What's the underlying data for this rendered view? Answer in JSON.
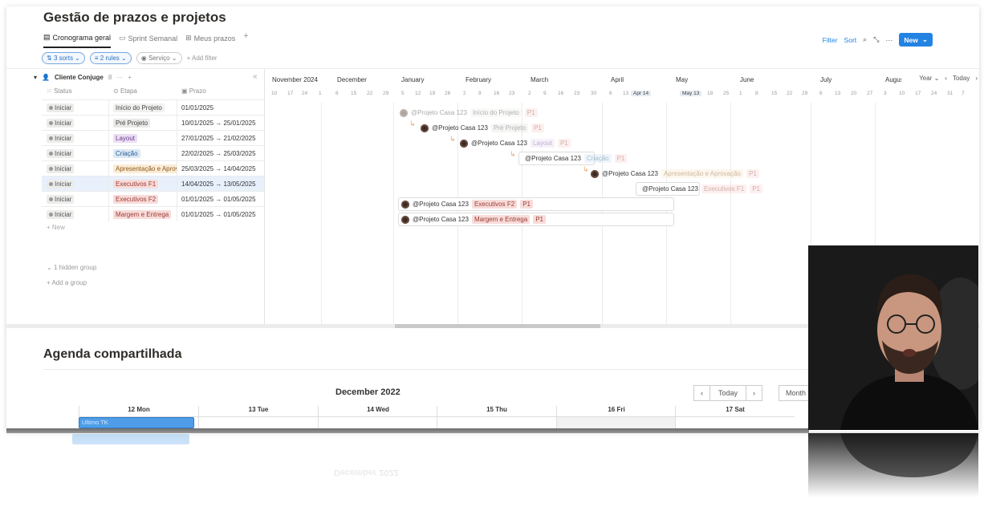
{
  "project": {
    "title": "Gestão de prazos e projetos",
    "tabs": [
      "Cronograma geral",
      "Sprint Semanal",
      "Meus prazos"
    ],
    "toolbar": {
      "filter": "Filter",
      "sort": "Sort",
      "new": "New"
    },
    "filters": {
      "sorts": "3 sorts",
      "rules": "2 rules",
      "service": "Serviço",
      "add_filter": "Add filter"
    },
    "group": {
      "name": "Cliente Conjuge",
      "count": "8"
    },
    "columns": {
      "status": "Status",
      "stage": "Etapa",
      "deadline": "Prazo"
    },
    "rows": [
      {
        "status": "Iniciar",
        "stage": "Início do Projeto",
        "deadline": "01/01/2025",
        "tag_bg": "#f1f1ef",
        "tag_fg": "#444",
        "bar": "@Projeto Casa 123",
        "bar_stage": "Início do Projeto",
        "priority": "P1"
      },
      {
        "status": "Iniciar",
        "stage": "Pré Projeto",
        "deadline": "10/01/2025 → 25/01/2025",
        "tag_bg": "#e9e9e7",
        "tag_fg": "#444",
        "bar": "@Projeto Casa 123",
        "bar_stage": "Pré Projeto",
        "priority": "P1"
      },
      {
        "status": "Iniciar",
        "stage": "Layout",
        "deadline": "27/01/2025 → 21/02/2025",
        "tag_bg": "#ecdff4",
        "tag_fg": "#6b3d8e",
        "bar": "@Projeto Casa 123",
        "bar_stage": "Layout",
        "priority": "P1"
      },
      {
        "status": "Iniciar",
        "stage": "Criação",
        "deadline": "22/02/2025 → 25/03/2025",
        "tag_bg": "#dbe9f7",
        "tag_fg": "#2a5c8e",
        "bar": "@Projeto Casa 123",
        "bar_stage": "Criação",
        "priority": "P1"
      },
      {
        "status": "Iniciar",
        "stage": "Apresentação e Aprovação",
        "deadline": "25/03/2025 → 14/04/2025",
        "tag_bg": "#fbecd6",
        "tag_fg": "#8a5a1f",
        "bar": "@Projeto Casa 123",
        "bar_stage": "Apresentação e Aprovação",
        "priority": "P1"
      },
      {
        "status": "Iniciar",
        "stage": "Executivos F1",
        "deadline": "14/04/2025 → 13/05/2025",
        "tag_bg": "#f8dcda",
        "tag_fg": "#9a3b33",
        "bar": "@Projeto Casa 123",
        "bar_stage": "Executivos F1",
        "priority": "P1"
      },
      {
        "status": "Iniciar",
        "stage": "Executivos F2",
        "deadline": "01/01/2025 → 01/05/2025",
        "tag_bg": "#f8dcda",
        "tag_fg": "#9a3b33",
        "bar": "@Projeto Casa 123",
        "bar_stage": "Executivos F2",
        "priority": "P1"
      },
      {
        "status": "Iniciar",
        "stage": "Margem e Entrega",
        "deadline": "01/01/2025 → 01/05/2025",
        "tag_bg": "#f8dcda",
        "tag_fg": "#9a3b33",
        "bar": "@Projeto Casa 123",
        "bar_stage": "Margem e Entrega",
        "priority": "P1"
      }
    ],
    "new_row": "New",
    "hidden_group": "1 hidden group",
    "add_group": "Add a group",
    "timeline": {
      "months": [
        "November 2024",
        "December",
        "January",
        "February",
        "March",
        "April",
        "May",
        "June",
        "July",
        "August"
      ],
      "weeks": [
        "10",
        "17",
        "24",
        "1",
        "8",
        "15",
        "22",
        "29",
        "5",
        "12",
        "19",
        "26",
        "2",
        "9",
        "16",
        "23",
        "2",
        "9",
        "16",
        "23",
        "30",
        "6",
        "13",
        "Apr 14",
        "May 13",
        "18",
        "25",
        "1",
        "8",
        "15",
        "22",
        "29",
        "6",
        "13",
        "20",
        "27",
        "3",
        "10",
        "17",
        "24",
        "31",
        "7"
      ],
      "view": "Year",
      "today": "Today"
    }
  },
  "agenda": {
    "title": "Agenda compartilhada",
    "month": "December 2022",
    "today": "Today",
    "view": "Month",
    "days": [
      "12 Mon",
      "13 Tue",
      "14 Wed",
      "15 Thu",
      "16 Fri",
      "17 Sat"
    ],
    "event": "Ultimo TK"
  }
}
